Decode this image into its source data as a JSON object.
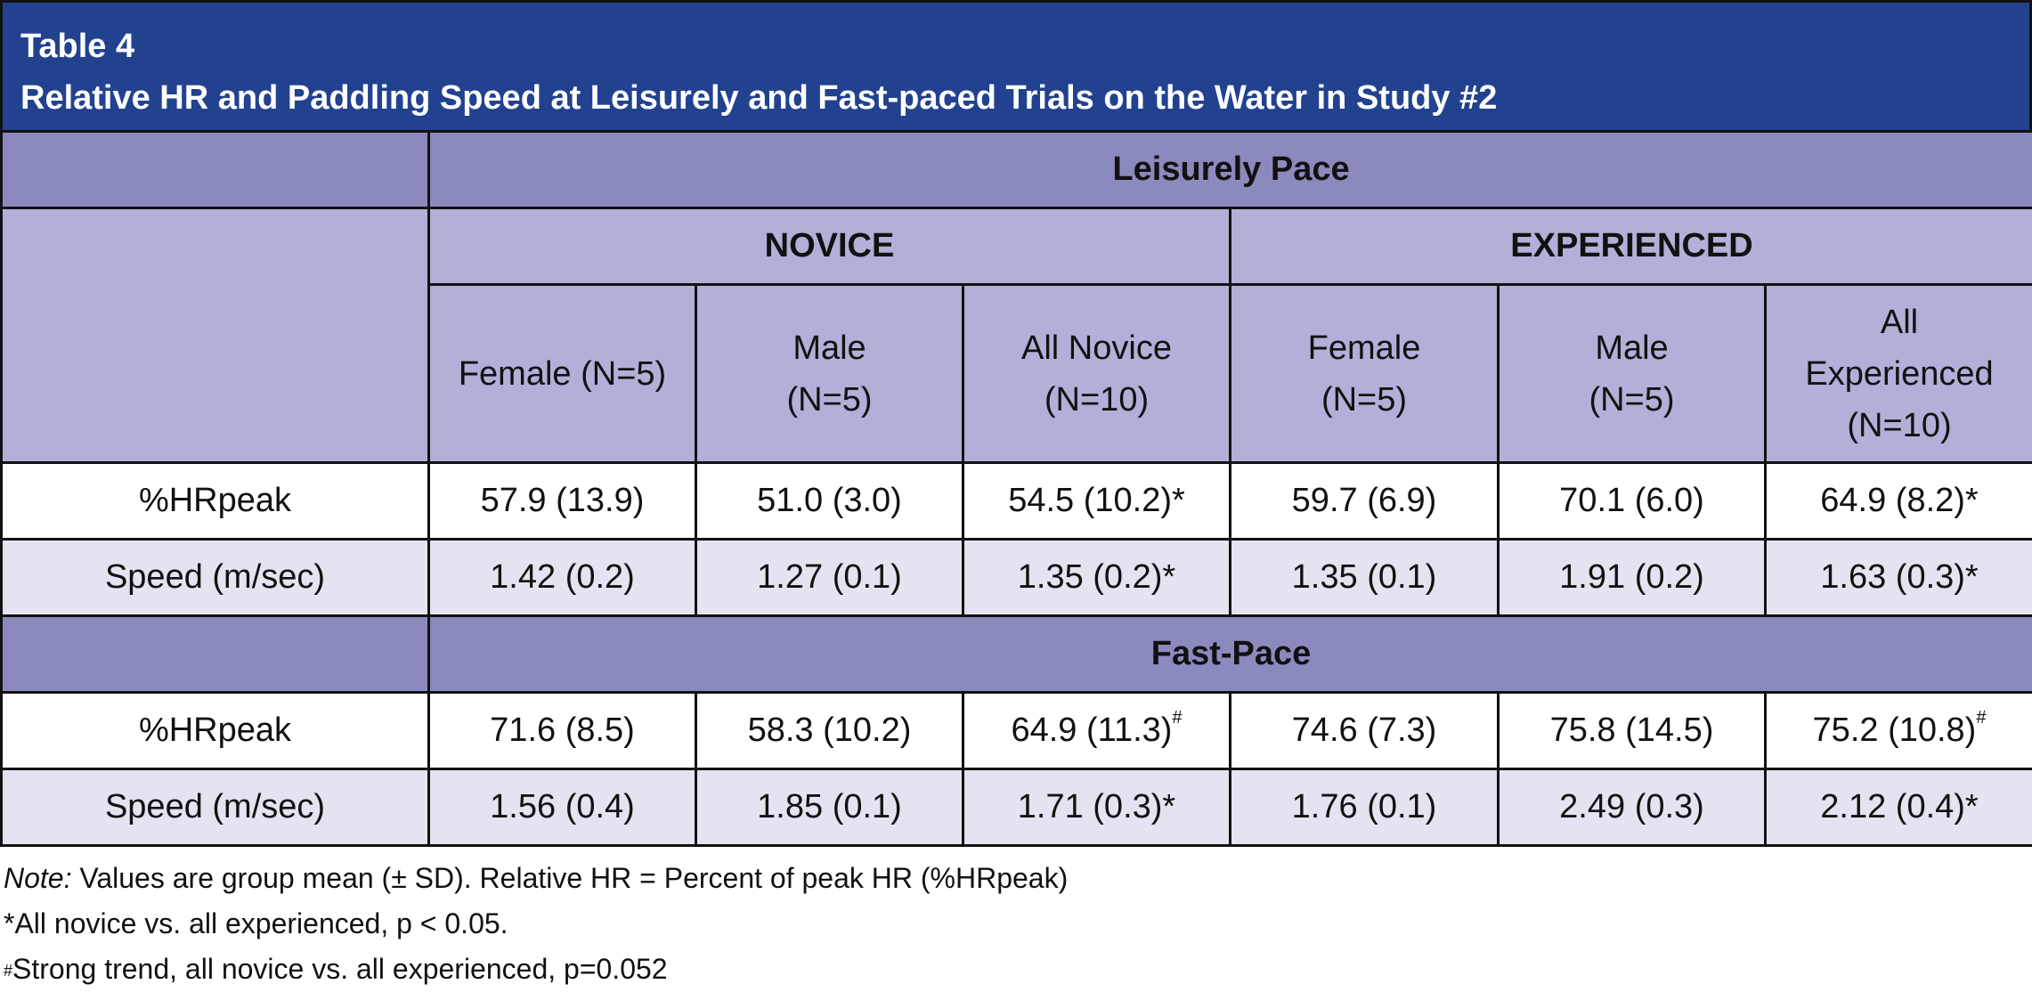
{
  "table_label": "Table 4",
  "table_title": "Relative HR and Paddling Speed at Leisurely and Fast-paced Trials on the Water in Study #2",
  "leisurely_header": "Leisurely Pace",
  "fast_header": "Fast-Pace",
  "groups": {
    "novice": "NOVICE",
    "experienced": "EXPERIENCED"
  },
  "subheaders": [
    [
      "Female (N=5)"
    ],
    [
      "Male",
      "(N=5)"
    ],
    [
      "All Novice",
      "(N=10)"
    ],
    [
      "Female",
      "(N=5)"
    ],
    [
      "Male",
      "(N=5)"
    ],
    [
      "All",
      "Experienced",
      "(N=10)"
    ]
  ],
  "leisurely_rows": [
    {
      "label": "%HRpeak",
      "cells": [
        "57.9 (13.9)",
        "51.0 (3.0)",
        "54.5 (10.2)*",
        "59.7 (6.9)",
        "70.1 (6.0)",
        "64.9 (8.2)*"
      ]
    },
    {
      "label": "Speed (m/sec)",
      "cells": [
        "1.42 (0.2)",
        "1.27 (0.1)",
        "1.35 (0.2)*",
        "1.35 (0.1)",
        "1.91 (0.2)",
        "1.63 (0.3)*"
      ]
    }
  ],
  "fast_rows": [
    {
      "label": "%HRpeak",
      "cells": [
        "71.6 (8.5)",
        "58.3 (10.2)",
        "64.9 (11.3)",
        "74.6 (7.3)",
        "75.8 (14.5)",
        "75.2 (10.8)"
      ],
      "marks": [
        "",
        "",
        "#",
        "",
        "",
        "#"
      ]
    },
    {
      "label": "Speed (m/sec)",
      "cells": [
        "1.56 (0.4)",
        "1.85 (0.1)",
        "1.71 (0.3)*",
        "1.76 (0.1)",
        "2.49 (0.3)",
        "2.12 (0.4)*"
      ]
    }
  ],
  "notes": {
    "note_label": "Note:",
    "note_text": " Values are group mean (± SD).  Relative HR = Percent of peak HR (%HRpeak)",
    "star_text": "*All novice vs. all experienced, p < 0.05.",
    "hash_mark": "#",
    "hash_text": "Strong trend, all novice vs. all experienced, p=0.052"
  },
  "colors": {
    "title_bg": "#22428f",
    "band_bg": "#8b8abf",
    "header_bg": "#b0b0d8",
    "alt_row_bg": "#e3e3f1"
  }
}
